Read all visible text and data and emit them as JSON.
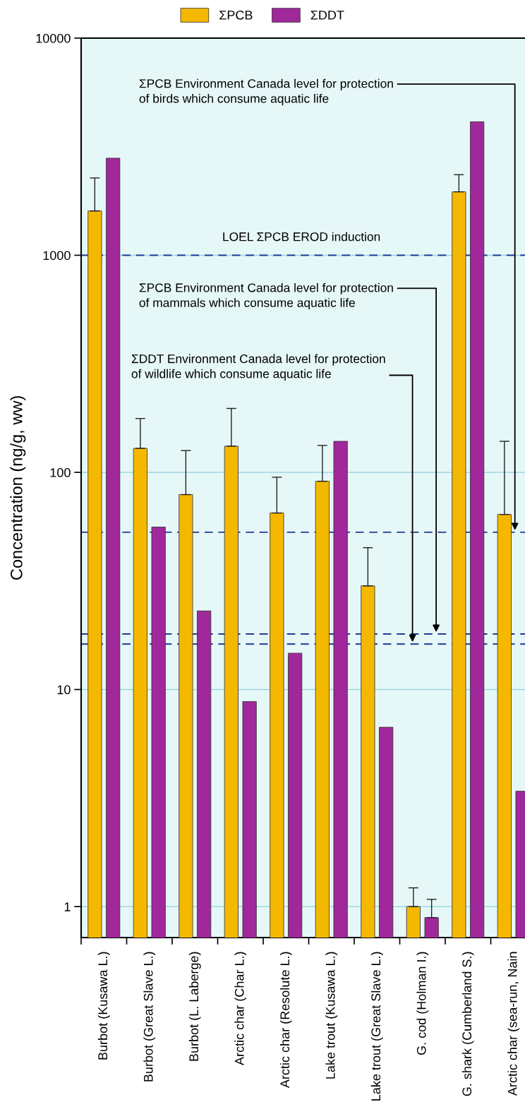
{
  "chart_data": {
    "type": "bar",
    "ylabel": "Concentration (ng/g, ww)",
    "categories": [
      "Burbot (Kusawa L.)",
      "Burbot (Great Slave L.)",
      "Burbot (L. Laberge)",
      "Arctic char (Char L.)",
      "Arctic char (Resolute L.)",
      "Lake trout (Kusawa L.)",
      "Lake trout (Great Slave L.)",
      "G. cod (Holman I.)",
      "G. shark (Cumberland S.)",
      "Arctic char (sea-run, Nain"
    ],
    "series": [
      {
        "name": "ΣPCB",
        "color": "#f5b800",
        "values": [
          1600,
          129,
          79,
          132,
          65,
          91,
          30,
          1.0,
          1960,
          64
        ],
        "errors": [
          [
            1600,
            2270
          ],
          [
            129,
            177
          ],
          [
            79,
            126
          ],
          [
            132,
            197
          ],
          [
            65,
            95
          ],
          [
            91,
            133
          ],
          [
            30,
            45
          ],
          [
            1.0,
            1.22
          ],
          [
            1960,
            2350
          ],
          [
            64,
            139
          ]
        ]
      },
      {
        "name": "ΣDDT",
        "color": "#a0289a",
        "values": [
          2800,
          56,
          23,
          8.8,
          14.7,
          139,
          6.7,
          0.89,
          4120,
          3.4
        ],
        "errors": [
          null,
          null,
          null,
          null,
          null,
          null,
          null,
          [
            0.89,
            1.08
          ],
          null,
          null
        ]
      }
    ],
    "log": "y",
    "ylim": [
      0.72,
      10000
    ],
    "yticks": [
      1,
      10,
      100,
      1000,
      10000
    ],
    "grid": "y",
    "legend": "top",
    "ref_lines": [
      {
        "axis": "y",
        "value": 1000,
        "label": "LOEL ΣPCB EROD induction",
        "color": "#1f3a93",
        "line_style": "dashed"
      },
      {
        "axis": "y",
        "value": 53,
        "label": "ΣPCB Environment Canada level for protection\nof birds which consume aquatic life",
        "color": "#1f3a93",
        "line_style": "dashed"
      },
      {
        "axis": "y",
        "value": 18,
        "label": "ΣPCB Environment Canada level for protection\nof mammals which consume aquatic life",
        "color": "#1f3a93",
        "line_style": "dashed"
      },
      {
        "axis": "y",
        "value": 16.2,
        "label": "ΣDDT Environment Canada level for protection\nof wildlife which consume aquatic life",
        "color": "#1f3a93",
        "line_style": "dashed"
      }
    ]
  }
}
